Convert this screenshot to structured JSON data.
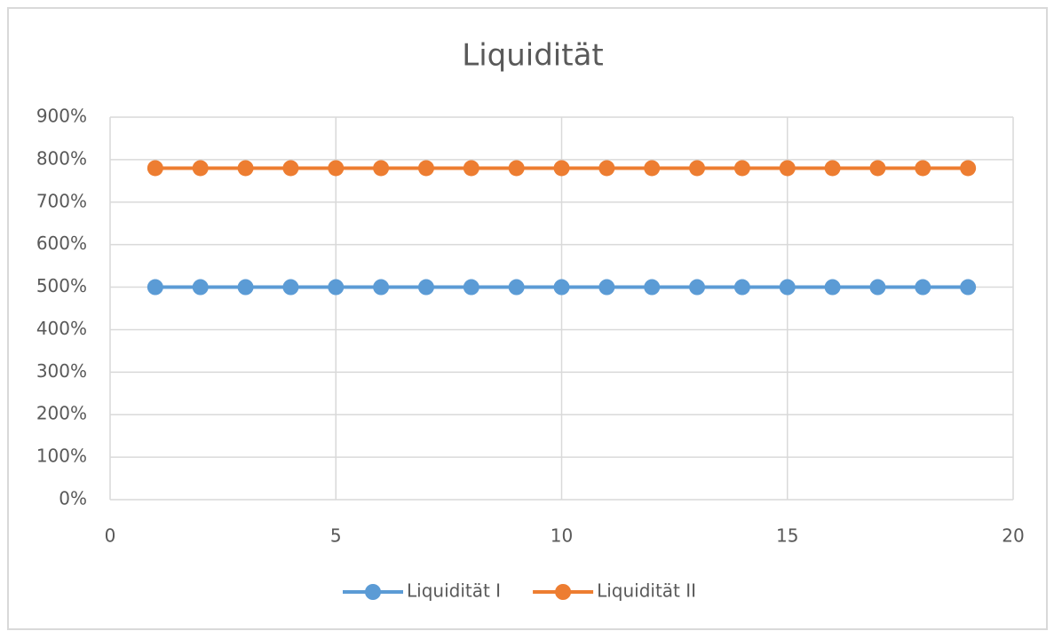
{
  "chart_data": {
    "type": "line",
    "title": "Liquidität",
    "x": [
      1,
      2,
      3,
      4,
      5,
      6,
      7,
      8,
      9,
      10,
      11,
      12,
      13,
      14,
      15,
      16,
      17,
      18,
      19
    ],
    "series": [
      {
        "name": "Liquidität I",
        "color": "#5b9bd5",
        "values": [
          500,
          500,
          500,
          500,
          500,
          500,
          500,
          500,
          500,
          500,
          500,
          500,
          500,
          500,
          500,
          500,
          500,
          500,
          500
        ]
      },
      {
        "name": "Liquidität II",
        "color": "#ed7d31",
        "values": [
          780,
          780,
          780,
          780,
          780,
          780,
          780,
          780,
          780,
          780,
          780,
          780,
          780,
          780,
          780,
          780,
          780,
          780,
          780
        ]
      }
    ],
    "xlim": [
      0,
      20
    ],
    "xticks": [
      0,
      5,
      10,
      15,
      20
    ],
    "ylim": [
      0,
      900
    ],
    "yticks": [
      {
        "value": 0,
        "label": "0%"
      },
      {
        "value": 100,
        "label": "100%"
      },
      {
        "value": 200,
        "label": "200%"
      },
      {
        "value": 300,
        "label": "300%"
      },
      {
        "value": 400,
        "label": "400%"
      },
      {
        "value": 500,
        "label": "500%"
      },
      {
        "value": 600,
        "label": "600%"
      },
      {
        "value": 700,
        "label": "700%"
      },
      {
        "value": 800,
        "label": "800%"
      },
      {
        "value": 900,
        "label": "900%"
      }
    ],
    "grid": true,
    "legend": "bottom"
  }
}
